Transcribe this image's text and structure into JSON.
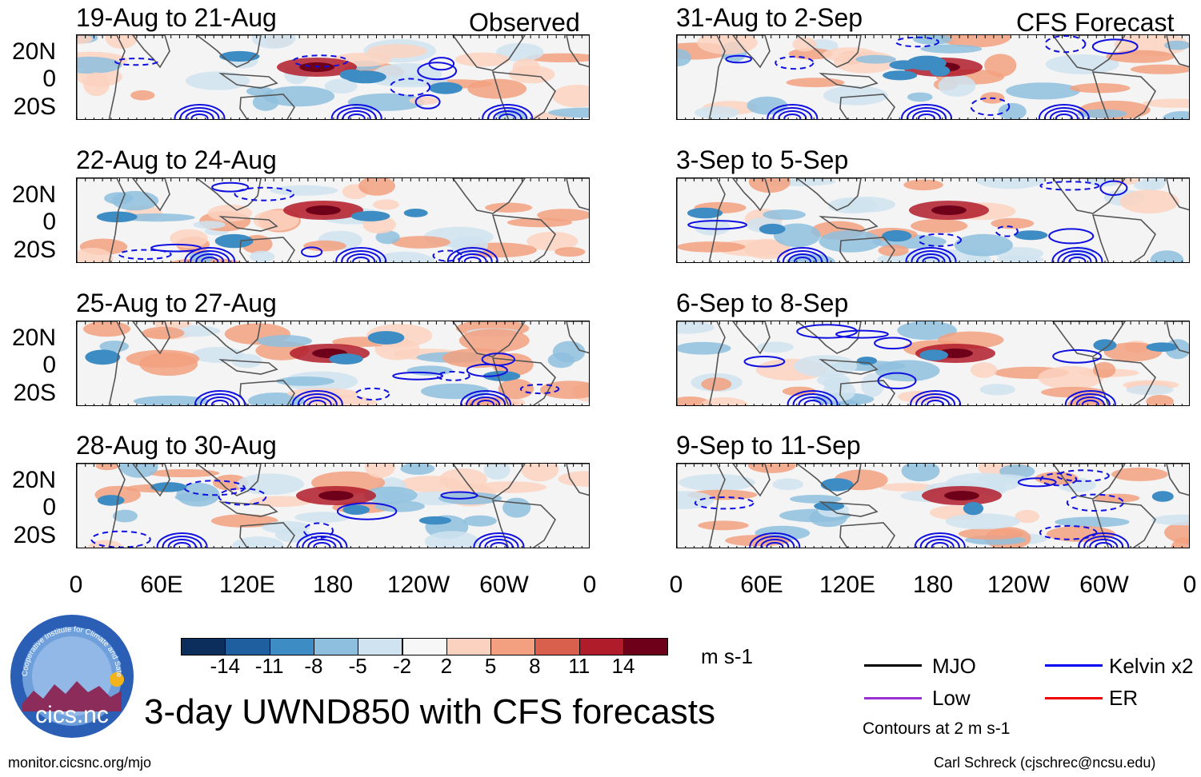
{
  "panels": [
    {
      "date": "19-Aug to 21-Aug",
      "tag": "Observed",
      "seed": 1
    },
    {
      "date": "22-Aug to 24-Aug",
      "tag": "",
      "seed": 2
    },
    {
      "date": "25-Aug to 27-Aug",
      "tag": "",
      "seed": 3
    },
    {
      "date": "28-Aug to 30-Aug",
      "tag": "",
      "seed": 4
    },
    {
      "date": "31-Aug to 2-Sep",
      "tag": "CFS Forecast",
      "seed": 5
    },
    {
      "date": "3-Sep to 5-Sep",
      "tag": "",
      "seed": 6
    },
    {
      "date": "6-Sep to 8-Sep",
      "tag": "",
      "seed": 7
    },
    {
      "date": "9-Sep to 11-Sep",
      "tag": "",
      "seed": 8
    }
  ],
  "lat_labels": [
    "20N",
    "0",
    "20S"
  ],
  "lon_labels": [
    "0",
    "60E",
    "120E",
    "180",
    "120W",
    "60W",
    "0"
  ],
  "colorbar": {
    "colors": [
      "#0b2e5c",
      "#1f5f9f",
      "#3d8cc4",
      "#8ebfde",
      "#cfe3f0",
      "#f7f7f7",
      "#fbd2c0",
      "#f2a07f",
      "#d8604c",
      "#b11c2b",
      "#6e0019"
    ],
    "labels": [
      "-14",
      "-11",
      "-8",
      "-5",
      "-2",
      "2",
      "5",
      "8",
      "11",
      "14"
    ],
    "units": "m s-1"
  },
  "title": "3-day UWND850 with CFS forecasts",
  "legend": {
    "items": [
      {
        "label": "MJO",
        "color": "#000000"
      },
      {
        "label": "Low",
        "color": "#9b30d0"
      },
      {
        "label": "Kelvin x2",
        "color": "#0000ee"
      },
      {
        "label": "ER",
        "color": "#ee0000"
      }
    ],
    "note": "Contours at 2 m s-1"
  },
  "logo_text": {
    "inst": "Cooperative Institute for Climate and Satellites",
    "name": "cics.nc"
  },
  "footer": {
    "left": "monitor.cicsnc.org/mjo",
    "right": "Carl Schreck (cjschrec@ncsu.edu)"
  }
}
